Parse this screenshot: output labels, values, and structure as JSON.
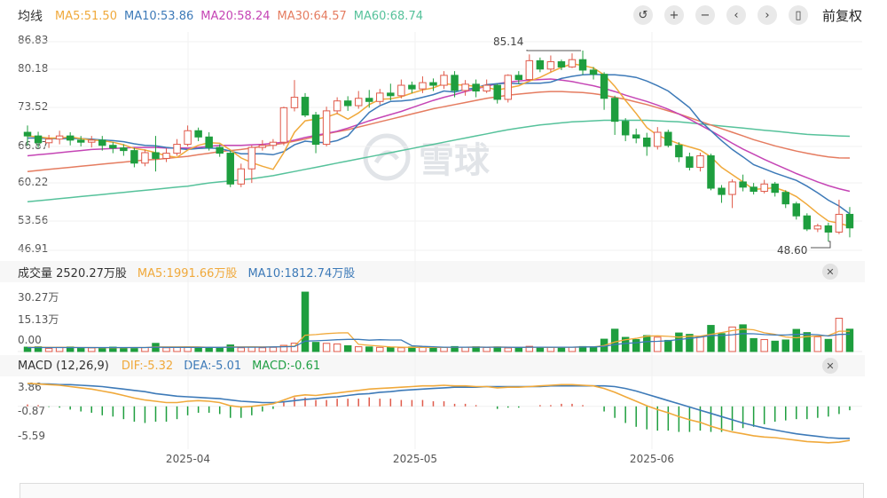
{
  "main_legend": {
    "title": "均线",
    "items": [
      {
        "label": "MA5:51.50",
        "color": "#f0a93b"
      },
      {
        "label": "MA10:53.86",
        "color": "#3d7ab8"
      },
      {
        "label": "MA20:58.24",
        "color": "#c545b5"
      },
      {
        "label": "MA30:64.57",
        "color": "#e57c60"
      },
      {
        "label": "MA60:68.74",
        "color": "#56c29b"
      }
    ]
  },
  "toolbar": {
    "buttons": [
      {
        "name": "undo-icon",
        "glyph": "↺"
      },
      {
        "name": "plus-icon",
        "glyph": "+"
      },
      {
        "name": "minus-icon",
        "glyph": "−"
      },
      {
        "name": "chevron-left-icon",
        "glyph": "‹"
      },
      {
        "name": "chevron-right-icon",
        "glyph": "›"
      },
      {
        "name": "candle-icon",
        "glyph": "▯"
      }
    ],
    "adjust_label": "前复权"
  },
  "price_axis": [
    "86.83",
    "80.18",
    "73.52",
    "66.87",
    "60.22",
    "53.56",
    "46.91"
  ],
  "price_annotations": {
    "high": "85.14",
    "low": "48.60"
  },
  "watermark": "雪球",
  "volume_legend": {
    "title": "成交量 2520.27万股",
    "ma5": "MA5:1991.66万股",
    "ma10": "MA10:1812.74万股",
    "ma5_color": "#f0a93b",
    "ma10_color": "#3d7ab8"
  },
  "volume_axis": [
    "30.27万",
    "15.13万",
    "0.00"
  ],
  "macd_legend": {
    "title": "MACD (12,26,9)",
    "dif": "DIF:-5.32",
    "dea": "DEA:-5.01",
    "macd": "MACD:-0.61",
    "dif_color": "#f0a93b",
    "dea_color": "#3d7ab8",
    "macd_color": "#22a046"
  },
  "macd_axis": [
    "3.86",
    "-0.87",
    "-5.59"
  ],
  "x_axis": [
    "2025-04",
    "2025-05",
    "2025-06"
  ],
  "colors": {
    "up": "#e05a4a",
    "down": "#1e9e3e"
  },
  "chart_data": {
    "type": "candlestick",
    "price_range": [
      46.91,
      86.83
    ],
    "volume_range": [
      0,
      30.27
    ],
    "macd_range": [
      -5.59,
      3.86
    ],
    "x_ticks": [
      {
        "label": "2025-04",
        "index": 15
      },
      {
        "label": "2025-05",
        "index": 36
      },
      {
        "label": "2025-06",
        "index": 59
      }
    ],
    "candles": [
      [
        69.5,
        68.8,
        70.8,
        66.9
      ],
      [
        68.8,
        67.5,
        69.6,
        66.5
      ],
      [
        67.5,
        68.2,
        69.0,
        66.5
      ],
      [
        68.2,
        68.8,
        69.8,
        67.2
      ],
      [
        68.8,
        68.0,
        69.5,
        67.0
      ],
      [
        68.0,
        67.6,
        68.8,
        66.8
      ],
      [
        67.6,
        68.0,
        68.8,
        66.6
      ],
      [
        68.0,
        67.0,
        68.8,
        66.0
      ],
      [
        67.0,
        66.5,
        67.6,
        65.5
      ],
      [
        66.5,
        66.0,
        67.2,
        65.0
      ],
      [
        66.0,
        63.6,
        66.5,
        62.8
      ],
      [
        63.6,
        65.6,
        66.2,
        63.0
      ],
      [
        65.6,
        64.5,
        68.8,
        62.0
      ],
      [
        64.5,
        65.5,
        66.4,
        63.8
      ],
      [
        65.5,
        67.2,
        68.2,
        65.0
      ],
      [
        67.2,
        69.8,
        70.8,
        66.8
      ],
      [
        69.8,
        68.6,
        70.4,
        67.8
      ],
      [
        68.6,
        66.6,
        69.5,
        66.0
      ],
      [
        66.6,
        65.5,
        67.2,
        64.8
      ],
      [
        65.5,
        59.6,
        66.0,
        59.0
      ],
      [
        59.6,
        62.5,
        63.5,
        59.0
      ],
      [
        62.5,
        66.6,
        67.0,
        59.8
      ],
      [
        66.6,
        67.0,
        68.0,
        66.0
      ],
      [
        67.0,
        67.6,
        68.2,
        66.2
      ],
      [
        67.6,
        74.2,
        74.4,
        67.0
      ],
      [
        74.2,
        76.2,
        79.5,
        73.5
      ],
      [
        76.2,
        72.8,
        77.0,
        72.4
      ],
      [
        72.8,
        67.2,
        73.4,
        65.5
      ],
      [
        67.2,
        73.6,
        74.4,
        66.8
      ],
      [
        73.6,
        75.5,
        76.2,
        73.0
      ],
      [
        75.5,
        74.6,
        76.4,
        73.6
      ],
      [
        74.6,
        76.0,
        77.4,
        74.0
      ],
      [
        76.0,
        75.4,
        77.6,
        74.2
      ],
      [
        75.4,
        77.0,
        77.8,
        74.8
      ],
      [
        77.0,
        76.5,
        78.8,
        75.6
      ],
      [
        76.5,
        78.5,
        79.6,
        76.0
      ],
      [
        78.5,
        77.8,
        79.2,
        77.0
      ],
      [
        77.8,
        79.0,
        80.2,
        77.0
      ],
      [
        79.0,
        78.5,
        79.8,
        77.4
      ],
      [
        78.5,
        80.4,
        81.2,
        77.8
      ],
      [
        80.4,
        77.5,
        81.2,
        76.2
      ],
      [
        77.5,
        78.7,
        79.5,
        76.5
      ],
      [
        78.7,
        77.4,
        79.6,
        76.2
      ],
      [
        77.4,
        78.5,
        79.6,
        77.0
      ],
      [
        78.5,
        75.8,
        78.8,
        75.0
      ],
      [
        75.8,
        80.4,
        80.6,
        75.2
      ],
      [
        80.4,
        79.6,
        81.2,
        78.8
      ],
      [
        79.6,
        83.2,
        84.4,
        79.2
      ],
      [
        83.2,
        81.6,
        83.8,
        81.0
      ],
      [
        81.6,
        83.0,
        84.2,
        81.0
      ],
      [
        83.0,
        82.0,
        83.4,
        81.4
      ],
      [
        82.0,
        83.4,
        84.6,
        81.8
      ],
      [
        83.4,
        81.4,
        85.14,
        80.5
      ],
      [
        81.4,
        80.6,
        82.0,
        79.6
      ],
      [
        80.6,
        76.0,
        81.0,
        73.8
      ],
      [
        76.0,
        71.6,
        76.5,
        69.0
      ],
      [
        71.6,
        69.0,
        72.2,
        67.8
      ],
      [
        69.0,
        68.4,
        70.2,
        67.4
      ],
      [
        68.4,
        66.8,
        69.4,
        65.0
      ],
      [
        66.8,
        69.5,
        70.5,
        66.2
      ],
      [
        69.5,
        67.0,
        70.0,
        66.6
      ],
      [
        67.0,
        64.8,
        67.6,
        63.8
      ],
      [
        64.8,
        62.8,
        65.6,
        62.2
      ],
      [
        62.8,
        65.0,
        65.6,
        62.0
      ],
      [
        65.0,
        58.8,
        65.4,
        58.4
      ],
      [
        58.8,
        57.6,
        59.4,
        56.0
      ],
      [
        57.6,
        60.0,
        60.5,
        55.0
      ],
      [
        60.0,
        59.0,
        61.4,
        58.2
      ],
      [
        59.0,
        58.2,
        59.8,
        57.6
      ],
      [
        58.2,
        59.6,
        60.4,
        57.8
      ],
      [
        59.6,
        58.0,
        60.0,
        57.2
      ],
      [
        58.0,
        55.8,
        58.4,
        55.0
      ],
      [
        55.8,
        53.5,
        56.2,
        52.8
      ],
      [
        53.5,
        51.0,
        54.0,
        50.6
      ],
      [
        51.0,
        51.6,
        52.0,
        50.4
      ],
      [
        51.6,
        50.4,
        52.2,
        48.6
      ],
      [
        50.4,
        53.8,
        56.6,
        50.0
      ],
      [
        53.8,
        51.2,
        55.2,
        49.4
      ]
    ],
    "volume": [
      2.2,
      2.4,
      1.6,
      2.1,
      2.3,
      1.6,
      1.8,
      2.0,
      2.2,
      1.9,
      1.5,
      2.0,
      4.1,
      1.9,
      2.1,
      2.0,
      2.1,
      2.2,
      2.0,
      3.3,
      1.9,
      2.2,
      1.9,
      2.1,
      3.1,
      4.2,
      29.8,
      4.6,
      4.1,
      3.8,
      2.9,
      2.4,
      2.3,
      2.1,
      2.0,
      1.9,
      2.3,
      2.4,
      2.1,
      2.0,
      2.5,
      2.2,
      2.4,
      2.0,
      2.3,
      1.8,
      2.1,
      2.6,
      2.0,
      2.2,
      2.0,
      2.2,
      2.5,
      2.4,
      6.2,
      11.2,
      7.1,
      6.0,
      8.0,
      7.2,
      5.6,
      9.3,
      8.6,
      7.3,
      13.1,
      9.0,
      12.3,
      13.4,
      6.5,
      6.0,
      5.2,
      5.8,
      11.1,
      9.5,
      7.4,
      6.1,
      16.7,
      11.2
    ],
    "vol_ma5": [
      2.1,
      2.2,
      2.1,
      2.1,
      2.1,
      2.0,
      2.0,
      1.9,
      1.9,
      1.9,
      2.0,
      2.0,
      2.3,
      2.3,
      2.3,
      2.4,
      2.3,
      2.1,
      2.1,
      2.3,
      2.3,
      2.4,
      2.3,
      2.3,
      2.5,
      2.7,
      8.2,
      8.5,
      9.0,
      9.3,
      9.4,
      3.6,
      3.1,
      2.7,
      2.3,
      2.2,
      2.1,
      2.1,
      2.1,
      2.1,
      2.2,
      2.2,
      2.3,
      2.2,
      2.3,
      2.2,
      2.1,
      2.2,
      2.2,
      2.1,
      2.2,
      2.2,
      2.3,
      2.3,
      3.0,
      4.8,
      5.9,
      6.6,
      7.7,
      7.9,
      7.6,
      7.2,
      7.7,
      7.7,
      8.6,
      9.5,
      10.5,
      11.3,
      10.9,
      9.4,
      8.6,
      7.3,
      6.9,
      7.5,
      7.8,
      8.0,
      10.2,
      10.2
    ],
    "vol_ma10": [
      2.0,
      2.0,
      2.0,
      2.0,
      2.0,
      2.0,
      2.0,
      2.0,
      2.0,
      2.0,
      2.0,
      2.0,
      2.2,
      2.1,
      2.1,
      2.1,
      2.1,
      2.1,
      2.1,
      2.2,
      2.2,
      2.2,
      2.2,
      2.3,
      2.4,
      2.5,
      5.2,
      5.4,
      5.6,
      5.9,
      6.1,
      6.1,
      5.7,
      5.9,
      5.8,
      5.8,
      2.9,
      2.6,
      2.4,
      2.2,
      2.2,
      2.2,
      2.2,
      2.2,
      2.2,
      2.2,
      2.1,
      2.2,
      2.2,
      2.2,
      2.2,
      2.2,
      2.3,
      2.3,
      2.6,
      3.5,
      4.1,
      4.4,
      5.0,
      5.1,
      5.4,
      6.0,
      6.6,
      7.2,
      8.1,
      8.0,
      8.4,
      9.0,
      8.9,
      8.5,
      8.3,
      8.3,
      8.6,
      8.7,
      8.4,
      7.8,
      8.6,
      8.7
    ],
    "price_ma": {
      "MA5": [
        68.8,
        68.6,
        68.4,
        68.4,
        68.6,
        68.3,
        68.0,
        67.9,
        67.6,
        67.1,
        66.4,
        66.1,
        65.6,
        65.0,
        64.7,
        66.1,
        67.0,
        67.5,
        67.4,
        66.1,
        64.6,
        63.7,
        63.0,
        62.4,
        65.6,
        69.5,
        71.7,
        72.0,
        72.4,
        73.1,
        72.0,
        73.2,
        74.8,
        75.8,
        75.9,
        76.3,
        77.0,
        77.6,
        78.0,
        78.8,
        78.6,
        78.5,
        78.3,
        78.1,
        77.6,
        78.0,
        78.4,
        79.3,
        80.0,
        81.0,
        81.9,
        82.6,
        82.3,
        81.8,
        80.5,
        78.3,
        75.6,
        73.1,
        70.4,
        68.9,
        68.1,
        67.3,
        66.7,
        66.1,
        64.8,
        62.8,
        61.4,
        60.0,
        58.6,
        58.7,
        58.9,
        58.2,
        57.2,
        55.7,
        54.0,
        52.5,
        52.1,
        51.5
      ],
      "MA10": [
        68.4,
        68.4,
        68.3,
        68.3,
        68.3,
        68.3,
        68.2,
        68.0,
        67.9,
        67.7,
        67.3,
        67.0,
        66.9,
        66.6,
        66.4,
        66.2,
        66.4,
        66.5,
        66.4,
        65.9,
        65.4,
        65.4,
        65.4,
        65.2,
        65.8,
        67.1,
        67.8,
        67.6,
        67.5,
        67.9,
        68.8,
        71.1,
        73.3,
        74.6,
        75.4,
        75.5,
        75.7,
        76.2,
        76.7,
        77.4,
        77.2,
        77.7,
        78.0,
        78.6,
        78.8,
        78.9,
        78.8,
        78.9,
        78.9,
        79.1,
        79.8,
        80.2,
        80.5,
        80.6,
        80.5,
        80.5,
        80.3,
        80.0,
        79.3,
        78.4,
        77.4,
        75.8,
        74.2,
        71.7,
        69.8,
        67.9,
        66.2,
        64.8,
        63.3,
        62.5,
        61.7,
        61.0,
        60.3,
        59.2,
        57.9,
        56.5,
        55.4,
        53.9
      ],
      "MA20": [
        65.0,
        65.2,
        65.4,
        65.6,
        65.8,
        66.0,
        66.2,
        66.3,
        66.4,
        66.5,
        66.6,
        66.6,
        66.6,
        66.5,
        66.5,
        66.5,
        66.6,
        66.8,
        67.0,
        67.0,
        67.0,
        67.1,
        67.2,
        67.4,
        67.6,
        68.0,
        68.5,
        68.9,
        69.3,
        69.7,
        70.3,
        71.0,
        71.7,
        72.3,
        72.9,
        73.5,
        74.2,
        74.9,
        75.6,
        76.2,
        76.7,
        77.3,
        77.8,
        78.3,
        78.8,
        79.1,
        79.3,
        79.5,
        79.6,
        79.7,
        79.5,
        79.2,
        78.8,
        78.4,
        77.9,
        77.3,
        76.6,
        76.0,
        75.4,
        74.7,
        73.9,
        73.0,
        72.0,
        70.9,
        69.8,
        68.6,
        67.4,
        66.3,
        65.3,
        64.3,
        63.4,
        62.5,
        61.6,
        60.8,
        60.0,
        59.3,
        58.7,
        58.2
      ],
      "MA30": [
        62.0,
        62.2,
        62.4,
        62.6,
        62.8,
        63.0,
        63.2,
        63.4,
        63.6,
        63.8,
        64.0,
        64.2,
        64.3,
        64.5,
        64.7,
        64.9,
        65.2,
        65.5,
        65.8,
        66.0,
        66.2,
        66.5,
        66.8,
        67.1,
        67.4,
        67.8,
        68.2,
        68.7,
        69.2,
        69.6,
        70.0,
        70.5,
        71.0,
        71.5,
        72.0,
        72.5,
        73.0,
        73.5,
        74.0,
        74.4,
        74.8,
        75.2,
        75.6,
        76.0,
        76.3,
        76.6,
        76.8,
        77.0,
        77.2,
        77.3,
        77.3,
        77.2,
        77.1,
        76.9,
        76.6,
        76.2,
        75.8,
        75.3,
        74.8,
        74.2,
        73.6,
        73.0,
        72.3,
        71.6,
        70.9,
        70.2,
        69.5,
        68.8,
        68.1,
        67.5,
        66.9,
        66.4,
        65.9,
        65.5,
        65.1,
        64.8,
        64.6,
        64.57
      ],
      "MA60": [
        56.2,
        56.4,
        56.6,
        56.8,
        57.0,
        57.2,
        57.4,
        57.6,
        57.8,
        58.0,
        58.2,
        58.4,
        58.6,
        58.8,
        59.0,
        59.2,
        59.5,
        59.8,
        60.0,
        60.2,
        60.4,
        60.6,
        60.9,
        61.2,
        61.6,
        62.0,
        62.4,
        62.8,
        63.2,
        63.6,
        64.0,
        64.4,
        64.8,
        65.2,
        65.6,
        66.0,
        66.4,
        66.8,
        67.2,
        67.6,
        68.0,
        68.4,
        68.8,
        69.2,
        69.6,
        70.0,
        70.3,
        70.6,
        70.9,
        71.1,
        71.3,
        71.5,
        71.6,
        71.7,
        71.8,
        71.8,
        71.8,
        71.8,
        71.8,
        71.7,
        71.6,
        71.5,
        71.3,
        71.1,
        70.9,
        70.7,
        70.5,
        70.3,
        70.1,
        69.9,
        69.7,
        69.5,
        69.3,
        69.1,
        69.0,
        68.9,
        68.8,
        68.74
      ]
    },
    "macd_dif": [
      3.6,
      3.5,
      3.4,
      3.3,
      3.1,
      2.9,
      2.7,
      2.4,
      2.1,
      1.7,
      1.3,
      1.0,
      0.8,
      0.6,
      0.6,
      0.8,
      0.9,
      0.8,
      0.6,
      0.1,
      -0.1,
      0.0,
      0.2,
      0.4,
      1.0,
      1.6,
      1.8,
      1.7,
      1.9,
      2.1,
      2.3,
      2.5,
      2.7,
      2.8,
      2.9,
      3.0,
      3.1,
      3.2,
      3.2,
      3.3,
      3.2,
      3.2,
      3.1,
      3.1,
      2.9,
      3.0,
      3.0,
      3.1,
      3.2,
      3.3,
      3.4,
      3.4,
      3.3,
      3.2,
      2.8,
      2.2,
      1.5,
      0.8,
      0.1,
      -0.5,
      -1.0,
      -1.6,
      -2.1,
      -2.5,
      -3.1,
      -3.6,
      -4.0,
      -4.3,
      -4.6,
      -4.8,
      -4.9,
      -5.1,
      -5.3,
      -5.5,
      -5.6,
      -5.7,
      -5.6,
      -5.32
    ],
    "macd_dea": [
      3.5,
      3.5,
      3.5,
      3.4,
      3.4,
      3.3,
      3.2,
      3.1,
      2.9,
      2.7,
      2.5,
      2.3,
      2.0,
      1.8,
      1.6,
      1.5,
      1.4,
      1.3,
      1.2,
      1.0,
      0.8,
      0.7,
      0.6,
      0.6,
      0.7,
      0.9,
      1.1,
      1.2,
      1.4,
      1.5,
      1.7,
      1.9,
      2.0,
      2.2,
      2.3,
      2.5,
      2.6,
      2.7,
      2.8,
      2.9,
      3.0,
      3.0,
      3.0,
      3.1,
      3.1,
      3.1,
      3.1,
      3.1,
      3.1,
      3.2,
      3.2,
      3.2,
      3.2,
      3.2,
      3.2,
      3.1,
      2.8,
      2.4,
      1.9,
      1.4,
      0.9,
      0.4,
      -0.1,
      -0.6,
      -1.1,
      -1.6,
      -2.1,
      -2.6,
      -3.0,
      -3.4,
      -3.7,
      -4.0,
      -4.3,
      -4.5,
      -4.7,
      -4.9,
      -5.0,
      -5.01
    ],
    "macd_hist": [
      0.3,
      0.2,
      -0.1,
      -0.2,
      -0.5,
      -0.8,
      -1.0,
      -1.4,
      -1.6,
      -2.0,
      -2.4,
      -2.6,
      -2.4,
      -2.4,
      -2.0,
      -1.4,
      -1.0,
      -1.0,
      -1.2,
      -1.8,
      -1.8,
      -1.4,
      -0.8,
      -0.4,
      0.6,
      1.4,
      1.4,
      1.0,
      1.0,
      1.2,
      1.2,
      1.2,
      1.4,
      1.2,
      1.2,
      1.0,
      1.0,
      1.0,
      0.8,
      0.8,
      0.4,
      0.4,
      0.2,
      0.0,
      -0.4,
      -0.2,
      -0.2,
      0.0,
      0.2,
      0.2,
      0.4,
      0.4,
      0.2,
      0.0,
      -0.8,
      -1.8,
      -2.6,
      -3.2,
      -3.6,
      -3.8,
      -3.8,
      -4.0,
      -4.0,
      -3.8,
      -4.0,
      -4.0,
      -3.8,
      -3.4,
      -3.2,
      -2.8,
      -2.4,
      -2.2,
      -2.0,
      -2.0,
      -1.8,
      -1.6,
      -1.2,
      -0.61
    ]
  }
}
